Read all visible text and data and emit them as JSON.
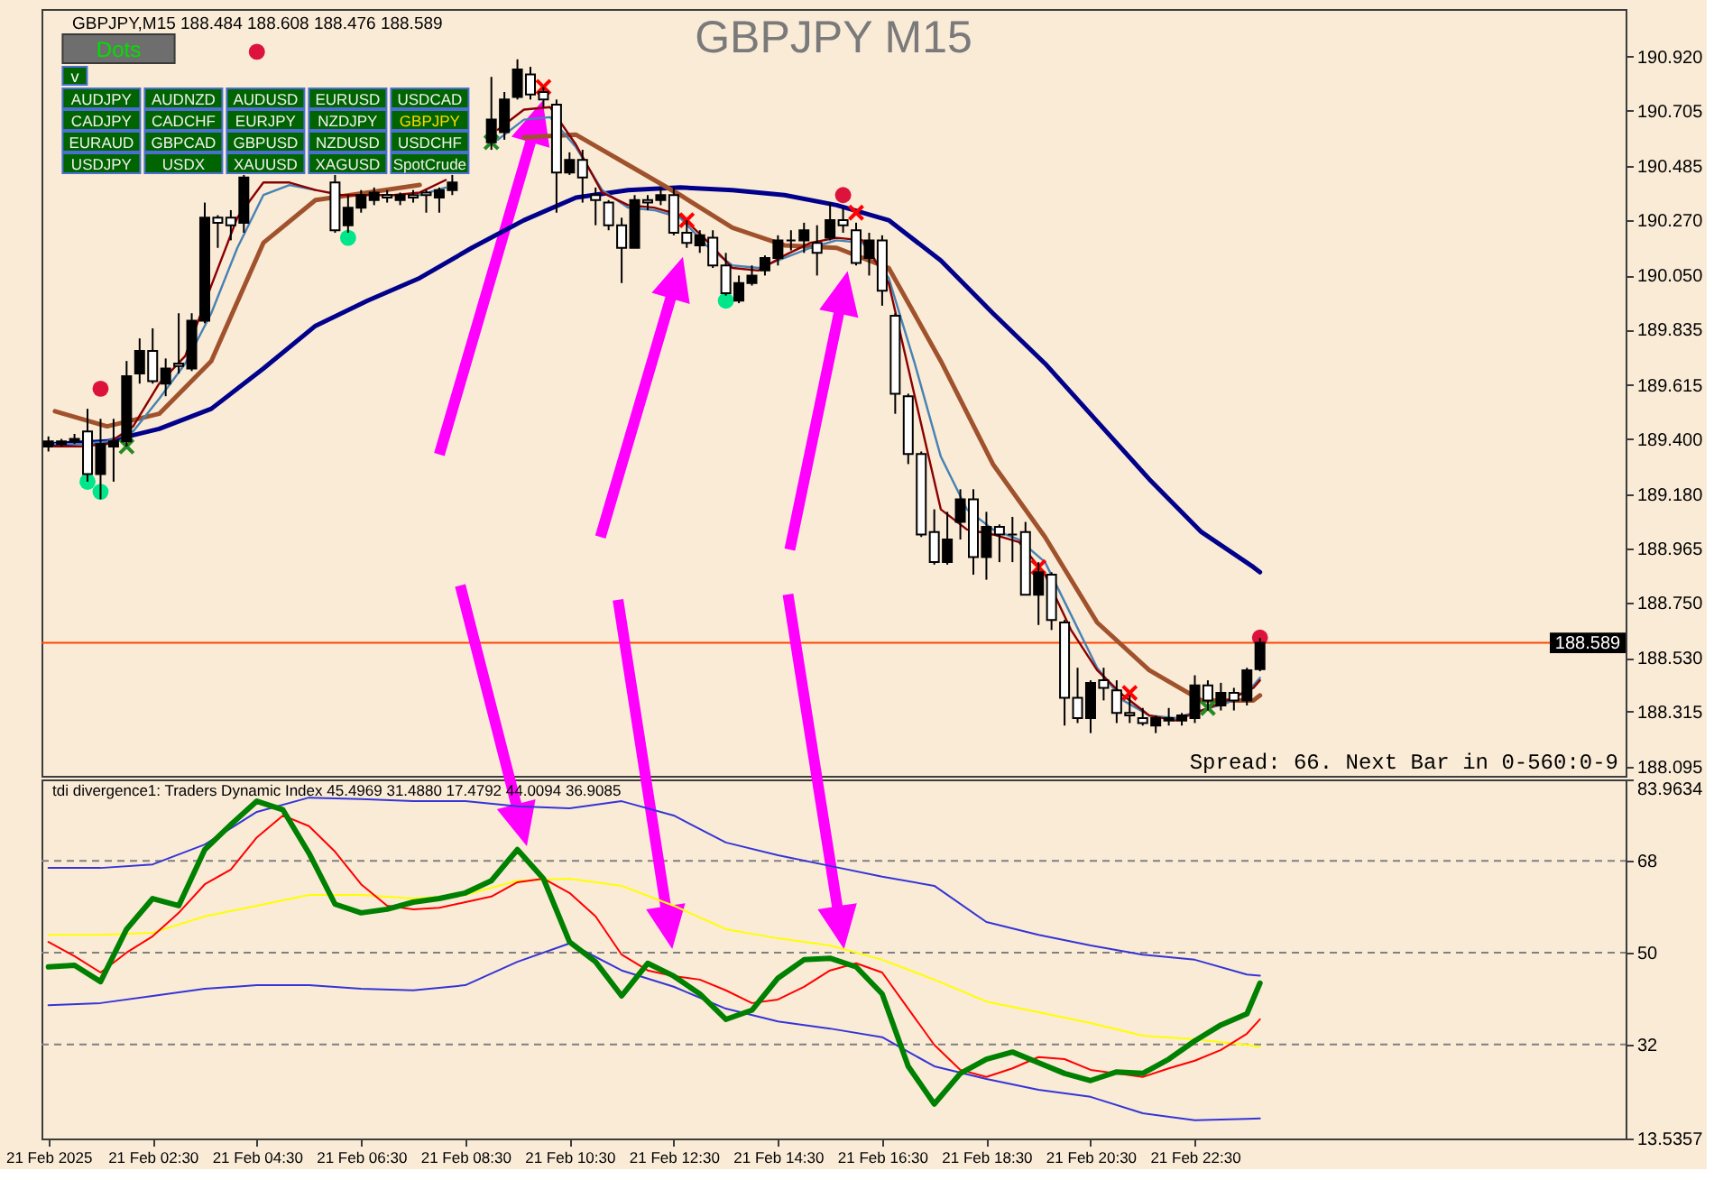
{
  "chart_data": [
    {
      "type": "candlestick",
      "title": "GBPJPY M15",
      "subtitle": "GBPJPY,M15 188.484 188.608 188.476 188.589",
      "x": [
        "2025-02-21T00:30",
        "2025-02-21T00:45",
        "2025-02-21T01:00",
        "2025-02-21T01:15",
        "2025-02-21T01:30",
        "2025-02-21T01:45",
        "2025-02-21T02:00",
        "2025-02-21T02:15",
        "2025-02-21T02:30",
        "2025-02-21T02:45",
        "2025-02-21T03:00",
        "2025-02-21T03:15",
        "2025-02-21T03:30",
        "2025-02-21T03:45",
        "2025-02-21T04:00",
        "2025-02-21T04:15",
        "2025-02-21T06:00",
        "2025-02-21T06:15",
        "2025-02-21T06:30",
        "2025-02-21T06:45",
        "2025-02-21T07:00",
        "2025-02-21T07:15",
        "2025-02-21T07:30",
        "2025-02-21T07:45",
        "2025-02-21T08:00",
        "2025-02-21T08:15",
        "2025-02-21T09:00",
        "2025-02-21T09:15",
        "2025-02-21T09:30",
        "2025-02-21T09:45",
        "2025-02-21T10:00",
        "2025-02-21T10:15",
        "2025-02-21T10:30",
        "2025-02-21T10:45",
        "2025-02-21T11:00",
        "2025-02-21T11:15",
        "2025-02-21T11:30",
        "2025-02-21T11:45",
        "2025-02-21T12:00",
        "2025-02-21T12:15",
        "2025-02-21T12:30",
        "2025-02-21T12:45",
        "2025-02-21T13:00",
        "2025-02-21T13:15",
        "2025-02-21T13:30",
        "2025-02-21T13:45",
        "2025-02-21T14:00",
        "2025-02-21T14:15",
        "2025-02-21T14:30",
        "2025-02-21T14:45",
        "2025-02-21T15:00",
        "2025-02-21T15:15",
        "2025-02-21T15:30",
        "2025-02-21T15:45",
        "2025-02-21T16:00",
        "2025-02-21T16:15",
        "2025-02-21T16:30",
        "2025-02-21T16:45",
        "2025-02-21T17:00",
        "2025-02-21T17:15",
        "2025-02-21T17:30",
        "2025-02-21T17:45",
        "2025-02-21T18:00",
        "2025-02-21T18:15",
        "2025-02-21T18:30",
        "2025-02-21T18:45",
        "2025-02-21T19:00",
        "2025-02-21T19:15",
        "2025-02-21T19:30",
        "2025-02-21T19:45",
        "2025-02-21T20:00",
        "2025-02-21T20:15",
        "2025-02-21T20:30",
        "2025-02-21T20:45",
        "2025-02-21T21:00",
        "2025-02-21T21:15",
        "2025-02-21T21:30",
        "2025-02-21T21:45",
        "2025-02-21T22:00",
        "2025-02-21T22:15",
        "2025-02-21T22:30",
        "2025-02-21T22:45",
        "2025-02-21T23:00",
        "2025-02-21T23:15",
        "2025-02-21T23:30",
        "2025-02-21T23:45"
      ],
      "ohlc": [
        [
          189.37,
          189.41,
          189.35,
          189.39
        ],
        [
          189.38,
          189.4,
          189.37,
          189.39
        ],
        [
          189.39,
          189.42,
          189.38,
          189.4
        ],
        [
          189.43,
          189.52,
          189.23,
          189.26
        ],
        [
          189.26,
          189.48,
          189.16,
          189.38
        ],
        [
          189.37,
          189.48,
          189.23,
          189.39
        ],
        [
          189.39,
          189.71,
          189.37,
          189.65
        ],
        [
          189.66,
          189.8,
          189.62,
          189.75
        ],
        [
          189.75,
          189.84,
          189.62,
          189.63
        ],
        [
          189.62,
          189.72,
          189.57,
          189.68
        ],
        [
          189.7,
          189.9,
          189.66,
          189.69
        ],
        [
          189.68,
          189.9,
          189.67,
          189.87
        ],
        [
          189.87,
          190.34,
          189.86,
          190.28
        ],
        [
          190.28,
          190.29,
          190.16,
          190.26
        ],
        [
          190.28,
          190.31,
          190.19,
          190.25
        ],
        [
          190.26,
          190.45,
          190.22,
          190.44
        ],
        [
          190.42,
          190.45,
          190.22,
          190.23
        ],
        [
          190.25,
          190.37,
          190.22,
          190.32
        ],
        [
          190.32,
          190.39,
          190.3,
          190.37
        ],
        [
          190.35,
          190.4,
          190.33,
          190.38
        ],
        [
          190.37,
          190.39,
          190.34,
          190.36
        ],
        [
          190.35,
          190.38,
          190.33,
          190.37
        ],
        [
          190.37,
          190.39,
          190.34,
          190.36
        ],
        [
          190.38,
          190.39,
          190.3,
          190.37
        ],
        [
          190.36,
          190.4,
          190.3,
          190.39
        ],
        [
          190.39,
          190.45,
          190.37,
          190.42
        ],
        [
          190.58,
          190.84,
          190.55,
          190.67
        ],
        [
          190.62,
          190.78,
          190.59,
          190.75
        ],
        [
          190.76,
          190.91,
          190.75,
          190.87
        ],
        [
          190.85,
          190.88,
          190.75,
          190.77
        ],
        [
          190.78,
          190.8,
          190.72,
          190.75
        ],
        [
          190.73,
          190.75,
          190.3,
          190.46
        ],
        [
          190.46,
          190.54,
          190.45,
          190.51
        ],
        [
          190.51,
          190.55,
          190.34,
          190.44
        ],
        [
          190.37,
          190.4,
          190.25,
          190.35
        ],
        [
          190.34,
          190.35,
          190.23,
          190.25
        ],
        [
          190.25,
          190.28,
          190.02,
          190.16
        ],
        [
          190.16,
          190.37,
          190.16,
          190.35
        ],
        [
          190.35,
          190.37,
          190.31,
          190.34
        ],
        [
          190.35,
          190.4,
          190.33,
          190.37
        ],
        [
          190.37,
          190.4,
          190.21,
          190.22
        ],
        [
          190.22,
          190.27,
          190.16,
          190.18
        ],
        [
          190.17,
          190.23,
          190.14,
          190.21
        ],
        [
          190.2,
          190.23,
          190.08,
          190.09
        ],
        [
          190.09,
          190.14,
          189.97,
          189.98
        ],
        [
          189.95,
          190.05,
          189.94,
          190.02
        ],
        [
          190.02,
          190.09,
          190.01,
          190.05
        ],
        [
          190.07,
          190.13,
          190.05,
          190.12
        ],
        [
          190.12,
          190.21,
          190.09,
          190.19
        ],
        [
          190.19,
          190.23,
          190.15,
          190.19
        ],
        [
          190.19,
          190.26,
          190.14,
          190.23
        ],
        [
          190.18,
          190.25,
          190.05,
          190.14
        ],
        [
          190.2,
          190.34,
          190.19,
          190.27
        ],
        [
          190.27,
          190.32,
          190.22,
          190.25
        ],
        [
          190.23,
          190.26,
          190.09,
          190.1
        ],
        [
          190.12,
          190.22,
          190.05,
          190.19
        ],
        [
          190.19,
          190.21,
          189.93,
          189.99
        ],
        [
          189.89,
          189.9,
          189.5,
          189.58
        ],
        [
          189.57,
          189.58,
          189.3,
          189.34
        ],
        [
          189.34,
          189.35,
          189.01,
          189.02
        ],
        [
          189.03,
          189.12,
          188.9,
          188.91
        ],
        [
          188.91,
          189.11,
          188.9,
          189.0
        ],
        [
          189.07,
          189.2,
          189.0,
          189.16
        ],
        [
          189.16,
          189.2,
          188.86,
          188.93
        ],
        [
          188.93,
          189.11,
          188.84,
          189.05
        ],
        [
          189.05,
          189.06,
          188.91,
          189.02
        ],
        [
          189.02,
          189.09,
          188.91,
          189.02
        ],
        [
          189.03,
          189.07,
          188.78,
          188.78
        ],
        [
          188.78,
          188.91,
          188.66,
          188.87
        ],
        [
          188.86,
          188.87,
          188.64,
          188.68
        ],
        [
          188.67,
          188.68,
          188.26,
          188.37
        ],
        [
          188.37,
          188.49,
          188.27,
          188.29
        ],
        [
          188.29,
          188.44,
          188.23,
          188.43
        ],
        [
          188.44,
          188.49,
          188.36,
          188.41
        ],
        [
          188.4,
          188.44,
          188.27,
          188.31
        ],
        [
          188.31,
          188.38,
          188.27,
          188.3
        ],
        [
          188.29,
          188.33,
          188.26,
          188.27
        ],
        [
          188.26,
          188.3,
          188.23,
          188.29
        ],
        [
          188.28,
          188.33,
          188.26,
          188.29
        ],
        [
          188.28,
          188.31,
          188.26,
          188.3
        ],
        [
          188.29,
          188.46,
          188.27,
          188.42
        ],
        [
          188.42,
          188.44,
          188.32,
          188.36
        ],
        [
          188.34,
          188.43,
          188.32,
          188.39
        ],
        [
          188.39,
          188.41,
          188.32,
          188.36
        ],
        [
          188.36,
          188.49,
          188.34,
          188.48
        ],
        [
          188.484,
          188.608,
          188.476,
          188.589
        ]
      ],
      "colors": [
        "#000000",
        "#000000",
        "#000000",
        "#ffffff",
        "#000000",
        "#000000",
        "#000000",
        "#000000",
        "#ffffff",
        "#000000",
        "#ffffff",
        "#000000",
        "#000000",
        "#ffffff",
        "#ffffff",
        "#000000",
        "#ffffff",
        "#000000",
        "#000000",
        "#000000",
        "#ffffff",
        "#000000",
        "#ffffff",
        "#ffffff",
        "#000000",
        "#000000",
        "#000000",
        "#000000",
        "#000000",
        "#ffffff",
        "#ffffff",
        "#ffffff",
        "#000000",
        "#ffffff",
        "#ffffff",
        "#ffffff",
        "#ffffff",
        "#000000",
        "#ffffff",
        "#000000",
        "#ffffff",
        "#ffffff",
        "#000000",
        "#ffffff",
        "#ffffff",
        "#000000",
        "#000000",
        "#000000",
        "#000000",
        "#000000",
        "#000000",
        "#ffffff",
        "#000000",
        "#ffffff",
        "#ffffff",
        "#000000",
        "#ffffff",
        "#ffffff",
        "#ffffff",
        "#ffffff",
        "#ffffff",
        "#000000",
        "#000000",
        "#ffffff",
        "#000000",
        "#ffffff",
        "#000000",
        "#ffffff",
        "#000000",
        "#ffffff",
        "#ffffff",
        "#ffffff",
        "#000000",
        "#ffffff",
        "#ffffff",
        "#ffffff",
        "#ffffff",
        "#000000",
        "#000000",
        "#000000",
        "#000000",
        "#ffffff",
        "#000000",
        "#ffffff",
        "#000000",
        "#000000"
      ],
      "series": [
        {
          "type": "line",
          "color": "#00008b",
          "x": [
            "2025-02-21T00:37:30",
            "2025-02-21T01:37:30",
            "2025-02-21T02:37:30",
            "2025-02-21T03:37:30",
            "2025-02-21T04:37:30",
            "2025-02-21T05:37:30",
            "2025-02-21T06:37:30",
            "2025-02-21T07:37:30",
            "2025-02-21T08:37:30",
            "2025-02-21T09:37:30",
            "2025-02-21T10:37:30",
            "2025-02-21T11:37:30",
            "2025-02-21T12:37:30",
            "2025-02-21T13:37:30",
            "2025-02-21T14:37:30",
            "2025-02-21T15:37:30",
            "2025-02-21T16:37:30",
            "2025-02-21T17:37:30",
            "2025-02-21T18:37:30",
            "2025-02-21T19:37:30",
            "2025-02-21T20:37:30",
            "2025-02-21T21:37:30",
            "2025-02-21T22:37:30",
            "2025-02-21T23:37:30",
            "2025-02-21T23:45"
          ],
          "values": [
            189.38,
            189.39,
            189.44,
            189.52,
            189.68,
            189.85,
            189.95,
            190.04,
            190.16,
            190.27,
            190.36,
            190.39,
            190.4,
            190.39,
            190.37,
            190.33,
            190.27,
            190.11,
            189.9,
            189.7,
            189.47,
            189.24,
            189.03,
            188.89,
            188.87
          ]
        },
        {
          "type": "line",
          "color": "#a0522d",
          "x": [
            "2025-02-21T00:37:30",
            "2025-02-21T01:37:30",
            "2025-02-21T02:37:30",
            "2025-02-21T03:37:30",
            "2025-02-21T04:37:30",
            "2025-02-21T05:37:30",
            "2025-02-21T06:37:30",
            "2025-02-21T07:37:30",
            "2025-02-21T08:37:30",
            "2025-02-21T09:37:30",
            "2025-02-21T10:37:30",
            "2025-02-21T11:37:30",
            "2025-02-21T12:37:30",
            "2025-02-21T13:37:30",
            "2025-02-21T14:37:30",
            "2025-02-21T15:37:30",
            "2025-02-21T16:37:30",
            "2025-02-21T17:37:30",
            "2025-02-21T18:37:30",
            "2025-02-21T19:37:30",
            "2025-02-21T20:37:30",
            "2025-02-21T21:37:30",
            "2025-02-21T22:37:30",
            "2025-02-21T23:37:30",
            "2025-02-21T23:45"
          ],
          "values": [
            189.51,
            189.45,
            189.5,
            189.71,
            190.18,
            190.35,
            190.38,
            190.41,
            null,
            190.6,
            190.61,
            190.49,
            190.37,
            190.24,
            190.17,
            190.16,
            190.08,
            189.71,
            189.3,
            189.01,
            188.67,
            188.48,
            188.36,
            188.36,
            188.38
          ]
        },
        {
          "type": "line",
          "color": "#4682b4",
          "x": [
            "2025-02-21T00:37:30",
            "2025-02-21T01:07:30",
            "2025-02-21T01:37:30",
            "2025-02-21T02:07:30",
            "2025-02-21T02:37:30",
            "2025-02-21T03:07:30",
            "2025-02-21T03:37:30",
            "2025-02-21T04:07:30",
            "2025-02-21T04:37:30",
            "2025-02-21T05:07:30",
            "2025-02-21T05:37:30",
            "2025-02-21T06:07:30",
            "2025-02-21T06:37:30",
            "2025-02-21T07:07:30",
            "2025-02-21T07:37:30",
            "2025-02-21T08:07:30",
            "2025-02-21T08:37:30",
            "2025-02-21T09:07:30",
            "2025-02-21T09:37:30",
            "2025-02-21T10:07:30",
            "2025-02-21T10:37:30",
            "2025-02-21T11:07:30",
            "2025-02-21T11:37:30",
            "2025-02-21T12:07:30",
            "2025-02-21T12:37:30",
            "2025-02-21T13:07:30",
            "2025-02-21T13:37:30",
            "2025-02-21T14:07:30",
            "2025-02-21T14:37:30",
            "2025-02-21T15:07:30",
            "2025-02-21T15:37:30",
            "2025-02-21T16:07:30",
            "2025-02-21T16:37:30",
            "2025-02-21T17:07:30",
            "2025-02-21T17:37:30",
            "2025-02-21T18:07:30",
            "2025-02-21T18:37:30",
            "2025-02-21T19:07:30",
            "2025-02-21T19:37:30",
            "2025-02-21T20:07:30",
            "2025-02-21T20:37:30",
            "2025-02-21T21:07:30",
            "2025-02-21T21:37:30",
            "2025-02-21T22:07:30",
            "2025-02-21T22:37:30",
            "2025-02-21T23:07:30",
            "2025-02-21T23:37:30",
            "2025-02-21T23:45"
          ],
          "values": [
            189.38,
            189.38,
            189.39,
            189.43,
            189.56,
            189.7,
            189.9,
            190.16,
            190.37,
            190.41,
            190.39,
            null,
            null,
            null,
            190.37,
            190.4,
            null,
            190.59,
            190.67,
            190.68,
            190.56,
            190.39,
            190.32,
            190.31,
            190.28,
            190.17,
            190.09,
            190.08,
            190.12,
            190.16,
            190.19,
            190.18,
            190.04,
            189.7,
            189.33,
            189.12,
            189.04,
            189.0,
            188.91,
            188.7,
            188.49,
            188.36,
            188.3,
            188.29,
            188.32,
            188.35,
            188.42,
            188.45
          ]
        },
        {
          "type": "line",
          "color": "#8b0000",
          "x": [
            "2025-02-21T00:37:30",
            "2025-02-21T01:07:30",
            "2025-02-21T01:37:30",
            "2025-02-21T02:07:30",
            "2025-02-21T02:37:30",
            "2025-02-21T03:07:30",
            "2025-02-21T03:37:30",
            "2025-02-21T04:07:30",
            "2025-02-21T04:37:30",
            "2025-02-21T05:07:30",
            "2025-02-21T05:37:30",
            "2025-02-21T06:07:30",
            "2025-02-21T06:37:30",
            "2025-02-21T07:07:30",
            "2025-02-21T07:37:30",
            "2025-02-21T08:07:30",
            "2025-02-21T08:37:30",
            "2025-02-21T09:07:30",
            "2025-02-21T09:37:30",
            "2025-02-21T10:07:30",
            "2025-02-21T10:37:30",
            "2025-02-21T11:07:30",
            "2025-02-21T11:37:30",
            "2025-02-21T12:07:30",
            "2025-02-21T12:37:30",
            "2025-02-21T13:07:30",
            "2025-02-21T13:37:30",
            "2025-02-21T14:07:30",
            "2025-02-21T14:37:30",
            "2025-02-21T15:07:30",
            "2025-02-21T15:37:30",
            "2025-02-21T16:07:30",
            "2025-02-21T16:37:30",
            "2025-02-21T17:07:30",
            "2025-02-21T17:37:30",
            "2025-02-21T18:07:30",
            "2025-02-21T18:37:30",
            "2025-02-21T19:07:30",
            "2025-02-21T19:37:30",
            "2025-02-21T20:07:30",
            "2025-02-21T20:37:30",
            "2025-02-21T21:07:30",
            "2025-02-21T21:37:30",
            "2025-02-21T22:07:30",
            "2025-02-21T22:37:30",
            "2025-02-21T23:07:30",
            "2025-02-21T23:37:30",
            "2025-02-21T23:45"
          ],
          "values": [
            189.37,
            189.37,
            189.38,
            189.45,
            189.62,
            189.73,
            190.01,
            190.28,
            190.42,
            190.42,
            190.39,
            190.37,
            190.37,
            190.37,
            190.38,
            190.43,
            null,
            190.63,
            190.71,
            190.72,
            190.57,
            190.38,
            190.33,
            190.32,
            190.29,
            190.19,
            190.08,
            190.07,
            190.13,
            190.18,
            190.2,
            190.19,
            190.02,
            189.57,
            189.12,
            189.04,
            189.02,
            188.99,
            188.86,
            188.64,
            188.48,
            188.38,
            188.3,
            188.28,
            188.32,
            188.36,
            188.41,
            188.44
          ]
        },
        {
          "type": "scatter",
          "marker": "circle",
          "color": "#dc143c",
          "x": [
            "2025-02-21T01:30",
            "2025-02-21T04:30",
            "2025-02-21T15:45",
            "2025-02-21T23:45"
          ],
          "values": [
            189.6,
            190.94,
            190.37,
            188.61
          ]
        },
        {
          "type": "scatter",
          "marker": "circle",
          "color": "#00e68a",
          "x": [
            "2025-02-21T01:15",
            "2025-02-21T01:30",
            "2025-02-21T06:15",
            "2025-02-21T13:30"
          ],
          "values": [
            189.23,
            189.19,
            190.2,
            189.95
          ]
        },
        {
          "type": "scatter",
          "marker": "cross",
          "color": "#ff0000",
          "x": [
            "2025-02-21T10:00",
            "2025-02-21T12:45",
            "2025-02-21T16:00",
            "2025-02-21T19:30",
            "2025-02-21T21:15"
          ],
          "values": [
            190.8,
            190.27,
            190.3,
            188.89,
            188.39
          ]
        },
        {
          "type": "scatter",
          "marker": "cross",
          "color": "#228b22",
          "x": [
            "2025-02-21T02:00",
            "2025-02-21T09:00",
            "2025-02-21T22:45"
          ],
          "values": [
            189.37,
            190.58,
            188.33
          ]
        }
      ],
      "xlim": [
        "2025-02-21T00:22",
        "2025-02-22T06:46"
      ],
      "ylim": [
        188.06,
        191.11
      ],
      "yticks": [
        {
          "value": 188.095,
          "label": "188.095"
        },
        188.315,
        {
          "value": 188.53,
          "label": "188.530"
        },
        {
          "value": 188.75,
          "label": "188.750"
        },
        188.965,
        {
          "value": 189.18,
          "label": "189.180"
        },
        {
          "value": 189.4,
          "label": "189.400"
        },
        189.615,
        189.835,
        {
          "value": 190.05,
          "label": "190.050"
        },
        {
          "value": 190.27,
          "label": "190.270"
        },
        190.485,
        190.705,
        {
          "value": 190.92,
          "label": "190.920"
        }
      ],
      "tick_labels": "y",
      "ref_lines": [
        {
          "axis": "y",
          "value": 188.589,
          "label": "188.589",
          "color": "#ff4500"
        }
      ],
      "annotations": [
        "Dots",
        "v",
        "AUDJPY",
        "AUDNZD",
        "AUDUSD",
        "EURUSD",
        "USDCAD",
        "CADJPY",
        "CADCHF",
        "EURJPY",
        "NZDJPY",
        "GBPJPY",
        "EURAUD",
        "GBPCAD",
        "GBPUSD",
        "NZDUSD",
        "USDCHF",
        "USDJPY",
        "USDX",
        "XAUUSD",
        "XAGUSD",
        "SpotCrude",
        "Spread: 66. Next Bar in 0-560:0-9"
      ]
    },
    {
      "type": "line",
      "title": "tdi divergence1: Traders Dynamic Index 45.4969 31.4880 17.4792 44.0094 36.9085",
      "series": [
        {
          "color": "#3535d5",
          "x": [
            "2025-02-21T00:30",
            "2025-02-21T01:30",
            "2025-02-21T02:30",
            "2025-02-21T03:30",
            "2025-02-21T04:30",
            "2025-02-21T05:30",
            "2025-02-21T06:30",
            "2025-02-21T07:30",
            "2025-02-21T08:30",
            "2025-02-21T09:30",
            "2025-02-21T10:30",
            "2025-02-21T11:30",
            "2025-02-21T12:30",
            "2025-02-21T13:30",
            "2025-02-21T14:30",
            "2025-02-21T15:30",
            "2025-02-21T16:30",
            "2025-02-21T17:30",
            "2025-02-21T18:30",
            "2025-02-21T19:30",
            "2025-02-21T20:30",
            "2025-02-21T21:30",
            "2025-02-21T22:30",
            "2025-02-21T23:30",
            "2025-02-21T23:45"
          ],
          "values": [
            66.6,
            66.6,
            67.3,
            71.2,
            77.6,
            80.4,
            80.1,
            79.7,
            79.7,
            78.7,
            78.3,
            79.7,
            76.9,
            71.6,
            69.1,
            67.0,
            64.9,
            63.1,
            56.0,
            53.5,
            51.4,
            49.6,
            48.6,
            45.7,
            45.4969
          ]
        },
        {
          "color": "#3535d5",
          "x": [
            "2025-02-21T00:30",
            "2025-02-21T01:30",
            "2025-02-21T02:30",
            "2025-02-21T03:30",
            "2025-02-21T04:30",
            "2025-02-21T05:30",
            "2025-02-21T06:30",
            "2025-02-21T07:30",
            "2025-02-21T08:30",
            "2025-02-21T09:30",
            "2025-02-21T10:30",
            "2025-02-21T11:30",
            "2025-02-21T12:30",
            "2025-02-21T13:30",
            "2025-02-21T14:30",
            "2025-02-21T15:30",
            "2025-02-21T16:30",
            "2025-02-21T17:30",
            "2025-02-21T18:30",
            "2025-02-21T19:30",
            "2025-02-21T20:30",
            "2025-02-21T21:30",
            "2025-02-21T22:30",
            "2025-02-21T23:30",
            "2025-02-21T23:45"
          ],
          "values": [
            39.7,
            40.1,
            41.5,
            42.9,
            43.6,
            43.6,
            42.9,
            42.6,
            43.6,
            48.2,
            51.8,
            46.5,
            43.3,
            39.0,
            36.5,
            35.1,
            33.4,
            27.7,
            25.2,
            23.1,
            21.7,
            18.5,
            17.1,
            17.4,
            17.4792
          ]
        },
        {
          "color": "#ffff00",
          "x": [
            "2025-02-21T00:30",
            "2025-02-21T01:30",
            "2025-02-21T02:30",
            "2025-02-21T03:30",
            "2025-02-21T04:30",
            "2025-02-21T05:30",
            "2025-02-21T06:30",
            "2025-02-21T07:30",
            "2025-02-21T08:30",
            "2025-02-21T09:30",
            "2025-02-21T10:30",
            "2025-02-21T11:30",
            "2025-02-21T12:30",
            "2025-02-21T13:30",
            "2025-02-21T14:30",
            "2025-02-21T15:30",
            "2025-02-21T16:30",
            "2025-02-21T17:30",
            "2025-02-21T18:30",
            "2025-02-21T19:30",
            "2025-02-21T20:30",
            "2025-02-21T21:30",
            "2025-02-21T22:30",
            "2025-02-21T23:30",
            "2025-02-21T23:45"
          ],
          "values": [
            53.5,
            53.5,
            53.9,
            57.1,
            59.2,
            61.3,
            61.3,
            60.6,
            61.3,
            64.1,
            64.5,
            63.1,
            59.2,
            54.6,
            52.8,
            51.4,
            48.6,
            44.7,
            40.4,
            38.3,
            36.2,
            33.7,
            33.0,
            31.9,
            31.488
          ]
        },
        {
          "color": "#ff0000",
          "x": [
            "2025-02-21T00:30",
            "2025-02-21T01:00",
            "2025-02-21T01:30",
            "2025-02-21T02:00",
            "2025-02-21T02:30",
            "2025-02-21T03:00",
            "2025-02-21T03:30",
            "2025-02-21T04:00",
            "2025-02-21T04:30",
            "2025-02-21T05:00",
            "2025-02-21T05:30",
            "2025-02-21T06:00",
            "2025-02-21T06:30",
            "2025-02-21T07:00",
            "2025-02-21T07:30",
            "2025-02-21T08:00",
            "2025-02-21T08:30",
            "2025-02-21T09:00",
            "2025-02-21T09:30",
            "2025-02-21T10:00",
            "2025-02-21T10:30",
            "2025-02-21T11:00",
            "2025-02-21T11:30",
            "2025-02-21T12:00",
            "2025-02-21T12:30",
            "2025-02-21T13:00",
            "2025-02-21T13:30",
            "2025-02-21T14:00",
            "2025-02-21T14:30",
            "2025-02-21T15:00",
            "2025-02-21T15:30",
            "2025-02-21T16:00",
            "2025-02-21T16:30",
            "2025-02-21T17:00",
            "2025-02-21T17:30",
            "2025-02-21T18:00",
            "2025-02-21T18:30",
            "2025-02-21T19:00",
            "2025-02-21T19:30",
            "2025-02-21T20:00",
            "2025-02-21T20:30",
            "2025-02-21T21:00",
            "2025-02-21T21:30",
            "2025-02-21T22:00",
            "2025-02-21T22:30",
            "2025-02-21T23:00",
            "2025-02-21T23:30",
            "2025-02-21T23:45"
          ],
          "values": [
            52.1,
            49.3,
            46.1,
            50.0,
            53.2,
            57.8,
            63.4,
            66.3,
            72.6,
            76.9,
            74.8,
            69.8,
            63.4,
            59.2,
            58.5,
            58.8,
            59.9,
            61.0,
            63.8,
            64.5,
            61.7,
            57.1,
            49.6,
            46.5,
            45.4,
            44.7,
            42.6,
            40.1,
            40.8,
            43.3,
            46.5,
            47.9,
            46.1,
            39.0,
            31.9,
            27.0,
            25.6,
            27.3,
            29.5,
            29.1,
            27.0,
            26.3,
            25.6,
            27.3,
            28.8,
            30.9,
            34.1,
            36.9085
          ]
        },
        {
          "color": "#008000",
          "x": [
            "2025-02-21T00:30",
            "2025-02-21T01:00",
            "2025-02-21T01:30",
            "2025-02-21T02:00",
            "2025-02-21T02:30",
            "2025-02-21T03:00",
            "2025-02-21T03:30",
            "2025-02-21T04:00",
            "2025-02-21T04:30",
            "2025-02-21T05:00",
            "2025-02-21T05:30",
            "2025-02-21T06:00",
            "2025-02-21T06:30",
            "2025-02-21T07:00",
            "2025-02-21T07:30",
            "2025-02-21T08:00",
            "2025-02-21T08:30",
            "2025-02-21T09:00",
            "2025-02-21T09:30",
            "2025-02-21T10:00",
            "2025-02-21T10:30",
            "2025-02-21T11:00",
            "2025-02-21T11:30",
            "2025-02-21T12:00",
            "2025-02-21T12:30",
            "2025-02-21T13:00",
            "2025-02-21T13:30",
            "2025-02-21T14:00",
            "2025-02-21T14:30",
            "2025-02-21T15:00",
            "2025-02-21T15:30",
            "2025-02-21T16:00",
            "2025-02-21T16:30",
            "2025-02-21T17:00",
            "2025-02-21T17:30",
            "2025-02-21T18:00",
            "2025-02-21T18:30",
            "2025-02-21T19:00",
            "2025-02-21T19:30",
            "2025-02-21T20:00",
            "2025-02-21T20:30",
            "2025-02-21T21:00",
            "2025-02-21T21:30",
            "2025-02-21T22:00",
            "2025-02-21T22:30",
            "2025-02-21T23:00",
            "2025-02-21T23:30",
            "2025-02-21T23:45"
          ],
          "values": [
            47.2,
            47.5,
            44.3,
            54.6,
            60.6,
            59.2,
            70.2,
            75.1,
            79.7,
            78.0,
            69.5,
            59.5,
            57.8,
            58.5,
            59.9,
            60.6,
            61.7,
            64.1,
            70.2,
            64.5,
            52.1,
            48.2,
            41.5,
            47.9,
            45.4,
            41.9,
            36.9,
            38.7,
            45.0,
            48.6,
            48.9,
            47.2,
            41.9,
            27.7,
            20.3,
            26.3,
            29.1,
            30.5,
            28.4,
            26.3,
            24.9,
            26.6,
            26.3,
            29.1,
            32.7,
            35.8,
            38.0,
            44.0094
          ]
        }
      ],
      "xlim": [
        "2025-02-21T00:22",
        "2025-02-22T06:46"
      ],
      "ylim": [
        13.5357,
        83.9634
      ],
      "xticks": [
        {
          "value": "2025-02-21T00:30",
          "label": "21 Feb 2025"
        },
        {
          "value": "2025-02-21T02:30",
          "label": "21 Feb 02:30"
        },
        {
          "value": "2025-02-21T04:30",
          "label": "21 Feb 04:30"
        },
        {
          "value": "2025-02-21T06:30",
          "label": "21 Feb 06:30"
        },
        {
          "value": "2025-02-21T08:30",
          "label": "21 Feb 08:30"
        },
        {
          "value": "2025-02-21T10:30",
          "label": "21 Feb 10:30"
        },
        {
          "value": "2025-02-21T12:30",
          "label": "21 Feb 12:30"
        },
        {
          "value": "2025-02-21T14:30",
          "label": "21 Feb 14:30"
        },
        {
          "value": "2025-02-21T16:30",
          "label": "21 Feb 16:30"
        },
        {
          "value": "2025-02-21T18:30",
          "label": "21 Feb 18:30"
        },
        {
          "value": "2025-02-21T20:30",
          "label": "21 Feb 20:30"
        },
        {
          "value": "2025-02-21T22:30",
          "label": "21 Feb 22:30"
        }
      ],
      "yticks": [
        13.5357,
        32,
        50,
        68,
        83.9634
      ],
      "ref_lines": [
        {
          "axis": "y",
          "value": 68,
          "color": "#808080",
          "line_style": "dashed"
        },
        {
          "axis": "y",
          "value": 50,
          "color": "#808080",
          "line_style": "dashed"
        },
        {
          "axis": "y",
          "value": 32,
          "color": "#808080",
          "line_style": "dashed"
        }
      ]
    }
  ]
}
